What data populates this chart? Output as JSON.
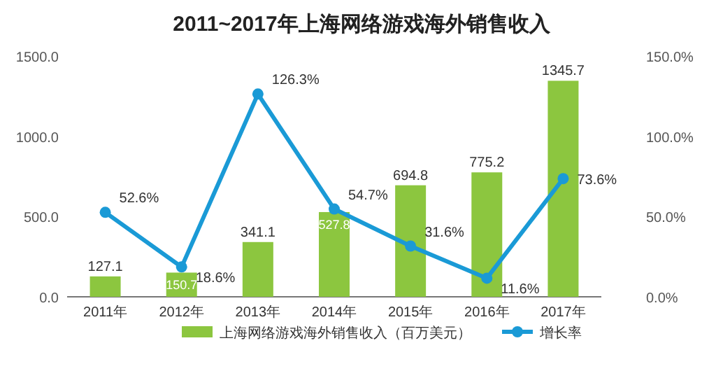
{
  "chart_data": {
    "type": "bar",
    "title": "2011~2017年上海网络游戏海外销售收入",
    "categories": [
      "2011年",
      "2012年",
      "2013年",
      "2014年",
      "2015年",
      "2016年",
      "2017年"
    ],
    "series": [
      {
        "name": "上海网络游戏海外销售收入（百万美元）",
        "color": "#8cc63f",
        "values": [
          127.1,
          150.7,
          341.1,
          527.8,
          694.8,
          775.2,
          1345.7
        ]
      },
      {
        "name": "增长率",
        "type": "line",
        "axis": "y2",
        "color": "#1a9ad6",
        "marker": "circle",
        "values": [
          52.6,
          18.6,
          126.3,
          54.7,
          31.6,
          11.6,
          73.6
        ],
        "value_labels": [
          "52.6%",
          "18.6%",
          "126.3%",
          "54.7%",
          "31.6%",
          "11.6%",
          "73.6%"
        ]
      }
    ],
    "data_labels": true,
    "ylim": [
      0,
      1500
    ],
    "yticks": [
      {
        "value": 0,
        "label": "0.0"
      },
      {
        "value": 500,
        "label": "500.0"
      },
      {
        "value": 1000,
        "label": "1000.0"
      },
      {
        "value": 1500,
        "label": "1500.0"
      }
    ],
    "y2lim": [
      0,
      150
    ],
    "y2ticks": [
      {
        "value": 0,
        "label": "0.0%"
      },
      {
        "value": 50,
        "label": "50.0%"
      },
      {
        "value": 100,
        "label": "100.0%"
      },
      {
        "value": 150,
        "label": "150.0%"
      }
    ],
    "grid": false,
    "legend": "bottom"
  }
}
